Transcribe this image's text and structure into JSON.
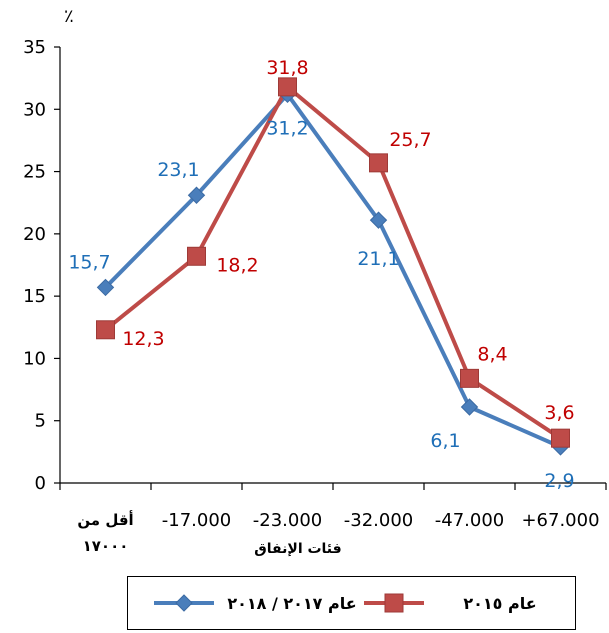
{
  "chart_data": {
    "type": "line",
    "ylabel": "٪",
    "xlabel": "فئات الإنفاق",
    "ylim": [
      0,
      35
    ],
    "yticks": [
      0,
      5,
      10,
      15,
      20,
      25,
      30,
      35
    ],
    "categories": [
      [
        "أقل من",
        "١٧٠٠٠"
      ],
      [
        "-17.000"
      ],
      [
        "-23.000"
      ],
      [
        "-32.000"
      ],
      [
        "-47.000"
      ],
      [
        "+67.000"
      ]
    ],
    "series": [
      {
        "name": "عام ٢٠١٧ / ٢٠١٨",
        "color": "#4a7ebb",
        "label_color": "#1f6fb7",
        "marker": "diamond",
        "values": [
          15.7,
          23.1,
          31.2,
          21.1,
          6.1,
          2.9
        ],
        "labels": [
          "15,7",
          "23,1",
          "31,2",
          "21,1",
          "6,1",
          "2,9"
        ]
      },
      {
        "name": "عام ٢٠١٥",
        "color": "#be4b48",
        "label_color": "#c00000",
        "marker": "square",
        "values": [
          12.3,
          18.2,
          31.8,
          25.7,
          8.4,
          3.6
        ],
        "labels": [
          "12,3",
          "18,2",
          "31,8",
          "25,7",
          "8,4",
          "3,6"
        ]
      }
    ],
    "grid": false,
    "legend": "bottom"
  }
}
